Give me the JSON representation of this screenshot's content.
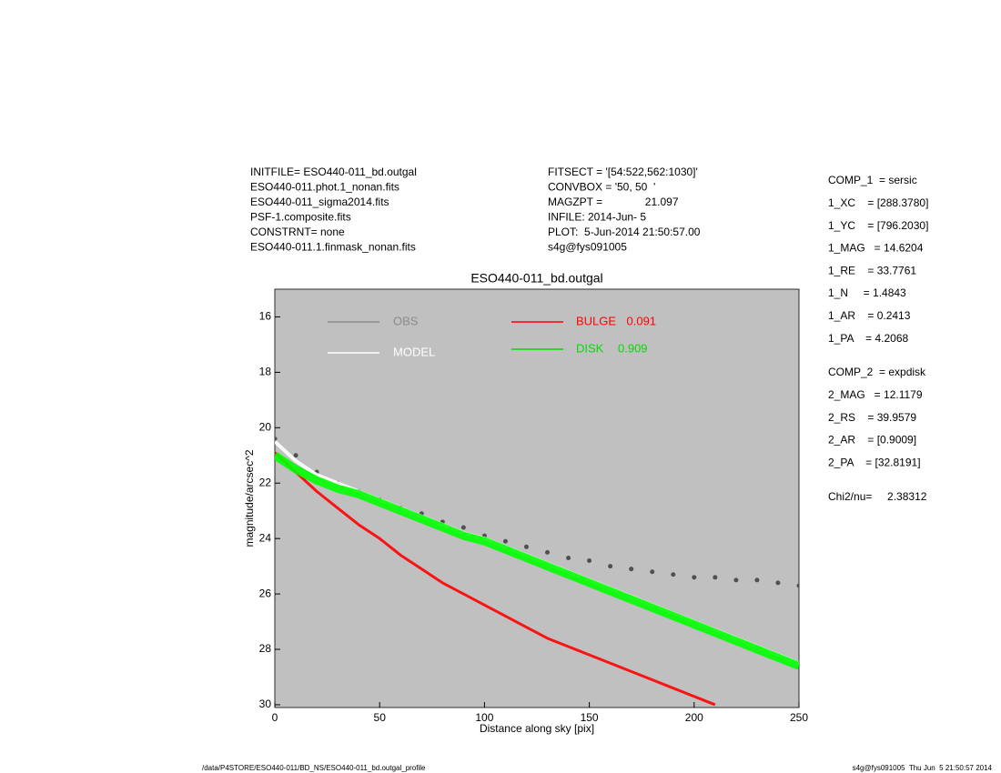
{
  "header": {
    "left": [
      "INITFILE= ESO440-011_bd.outgal",
      "ESO440-011.phot.1_nonan.fits",
      "ESO440-011_sigma2014.fits",
      "PSF-1.composite.fits",
      "CONSTRNT= none",
      "ESO440-011.1.finmask_nonan.fits"
    ],
    "middle": [
      "FITSECT = '[54:522,562:1030]'",
      "CONVBOX = '50, 50  '",
      "MAGZPT =              21.097",
      "INFILE: 2014-Jun- 5",
      "PLOT:  5-Jun-2014 21:50:57.00",
      "s4g@fys091005"
    ],
    "comp1": [
      "COMP_1  = sersic",
      "1_XC    = [288.3780]",
      "1_YC    = [796.2030]",
      "1_MAG   = 14.6204",
      "1_RE    = 33.7761",
      "1_N     = 1.4843",
      "1_AR    = 0.2413",
      "1_PA    = 4.2068"
    ],
    "comp2": [
      "COMP_2  = expdisk",
      "2_MAG   = 12.1179",
      "2_RS    = 39.9579",
      "2_AR    = [0.9009]",
      "2_PA    = [32.8191]"
    ],
    "chi": "Chi2/nu=     2.38312"
  },
  "footer": {
    "left": "/data/P4STORE/ESO440-011/BD_NS/ESO440-011_bd.outgal_profile",
    "right": "s4g@fys091005  Thu Jun  5 21:50:57 2014"
  },
  "chart_data": {
    "type": "line",
    "title": "ESO440-011_bd.outgal",
    "xlabel": "Distance along sky [pix]",
    "ylabel": "magnitude/arcsec^2",
    "xlim": [
      0,
      250
    ],
    "xticks": [
      0,
      50,
      100,
      150,
      200,
      250
    ],
    "ylim": [
      30.1,
      15
    ],
    "yticks": [
      16,
      18,
      20,
      22,
      24,
      26,
      28,
      30
    ],
    "background": "#c0c0c0",
    "x": [
      0,
      10,
      20,
      30,
      40,
      50,
      60,
      70,
      80,
      90,
      100,
      110,
      120,
      130,
      140,
      150,
      160,
      170,
      180,
      190,
      200,
      210,
      220,
      230,
      240,
      250
    ],
    "series": [
      {
        "name": "OBS",
        "color": "#505050",
        "legend_color": "#8c8c8c",
        "marker": "dot",
        "values": [
          20.4,
          21.0,
          21.6,
          22.0,
          22.3,
          22.6,
          22.9,
          23.1,
          23.4,
          23.6,
          23.9,
          24.1,
          24.3,
          24.5,
          24.7,
          24.8,
          25.0,
          25.1,
          25.2,
          25.3,
          25.4,
          25.4,
          25.5,
          25.5,
          25.6,
          25.7
        ]
      },
      {
        "name": "MODEL",
        "color": "#ffffff",
        "legend_color": "#ffffff",
        "marker": "line",
        "values": [
          20.5,
          21.2,
          21.7,
          22.0,
          22.3,
          22.6,
          22.9,
          23.2,
          23.5,
          23.8,
          24.0,
          24.3,
          24.6,
          24.9,
          25.2,
          25.5,
          25.8,
          26.1,
          26.4,
          26.7,
          27.0,
          27.3,
          27.6,
          27.9,
          28.2,
          28.5
        ]
      },
      {
        "name": "BULGE",
        "fraction": 0.091,
        "color": "#ff0000",
        "legend_color": "#ff0000",
        "marker": "line",
        "values": [
          20.9,
          21.6,
          22.3,
          22.9,
          23.5,
          24.0,
          24.6,
          25.1,
          25.6,
          26.0,
          26.4,
          26.8,
          27.2,
          27.6,
          27.9,
          28.2,
          28.5,
          28.8,
          29.1,
          29.4,
          29.7,
          30.0,
          null,
          null,
          null,
          null
        ]
      },
      {
        "name": "DISK",
        "fraction": 0.909,
        "color": "#00ff00",
        "legend_color": "#00dd00",
        "marker": "line",
        "values": [
          21.0,
          21.5,
          21.9,
          22.2,
          22.4,
          22.7,
          23.0,
          23.3,
          23.6,
          23.9,
          24.1,
          24.4,
          24.7,
          25.0,
          25.3,
          25.6,
          25.9,
          26.2,
          26.5,
          26.8,
          27.1,
          27.4,
          27.7,
          28.0,
          28.3,
          28.6
        ]
      }
    ]
  }
}
